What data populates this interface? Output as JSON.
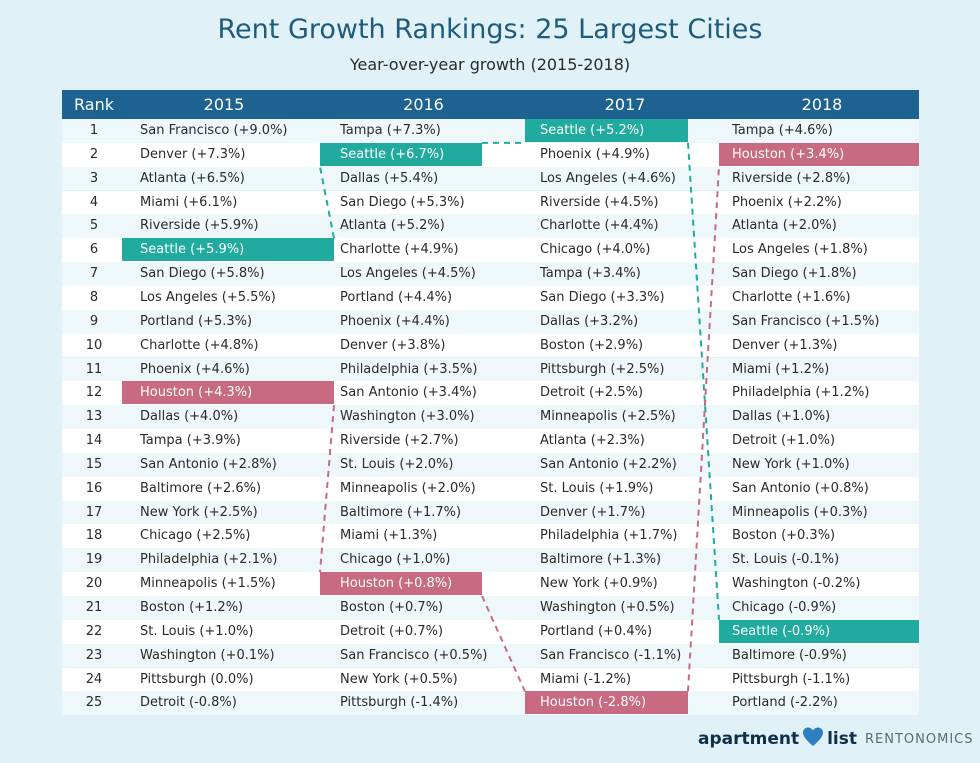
{
  "title": "Rent Growth Rankings: 25 Largest Cities",
  "subtitle": "Year-over-year growth (2015-2018)",
  "colors": {
    "header": "#1d6290",
    "seattle": "#21ab9e",
    "houston": "#c86b82"
  },
  "chart_data": {
    "type": "table",
    "columns": [
      "Rank",
      "2015",
      "2016",
      "2017",
      "2018"
    ],
    "ranks": [
      "1",
      "2",
      "3",
      "4",
      "5",
      "6",
      "7",
      "8",
      "9",
      "10",
      "11",
      "12",
      "13",
      "14",
      "15",
      "16",
      "17",
      "18",
      "19",
      "20",
      "21",
      "22",
      "23",
      "24",
      "25"
    ],
    "years": [
      {
        "year": "2015",
        "cities": [
          "San Francisco (+9.0%)",
          "Denver (+7.3%)",
          "Atlanta (+6.5%)",
          "Miami (+6.1%)",
          "Riverside (+5.9%)",
          "Seattle (+5.9%)",
          "San Diego (+5.8%)",
          "Los Angeles (+5.5%)",
          "Portland (+5.3%)",
          "Charlotte (+4.8%)",
          "Phoenix (+4.6%)",
          "Houston (+4.3%)",
          "Dallas (+4.0%)",
          "Tampa (+3.9%)",
          "San Antonio (+2.8%)",
          "Baltimore (+2.6%)",
          "New York (+2.5%)",
          "Chicago (+2.5%)",
          "Philadelphia (+2.1%)",
          "Minneapolis (+1.5%)",
          "Boston (+1.2%)",
          "St. Louis (+1.0%)",
          "Washington (+0.1%)",
          "Pittsburgh (0.0%)",
          "Detroit (-0.8%)"
        ]
      },
      {
        "year": "2016",
        "cities": [
          "Tampa (+7.3%)",
          "Seattle (+6.7%)",
          "Dallas (+5.4%)",
          "San Diego (+5.3%)",
          "Atlanta (+5.2%)",
          "Charlotte (+4.9%)",
          "Los Angeles (+4.5%)",
          "Portland (+4.4%)",
          "Phoenix (+4.4%)",
          "Denver (+3.8%)",
          "Philadelphia (+3.5%)",
          "San Antonio (+3.4%)",
          "Washington (+3.0%)",
          "Riverside (+2.7%)",
          "St. Louis (+2.0%)",
          "Minneapolis (+2.0%)",
          "Baltimore (+1.7%)",
          "Miami (+1.3%)",
          "Chicago (+1.0%)",
          "Houston (+0.8%)",
          "Boston (+0.7%)",
          "Detroit (+0.7%)",
          "San Francisco (+0.5%)",
          "New York (+0.5%)",
          "Pittsburgh (-1.4%)"
        ]
      },
      {
        "year": "2017",
        "cities": [
          "Seattle (+5.2%)",
          "Phoenix (+4.9%)",
          "Los Angeles (+4.6%)",
          "Riverside (+4.5%)",
          "Charlotte (+4.4%)",
          "Chicago (+4.0%)",
          "Tampa (+3.4%)",
          "San Diego (+3.3%)",
          "Dallas (+3.2%)",
          "Boston (+2.9%)",
          "Pittsburgh (+2.5%)",
          "Detroit (+2.5%)",
          "Minneapolis (+2.5%)",
          "Atlanta (+2.3%)",
          "San Antonio (+2.2%)",
          "St. Louis (+1.9%)",
          "Denver (+1.7%)",
          "Philadelphia (+1.7%)",
          "Baltimore (+1.3%)",
          "New York (+0.9%)",
          "Washington (+0.5%)",
          "Portland (+0.4%)",
          "San Francisco (-1.1%)",
          "Miami (-1.2%)",
          "Houston (-2.8%)"
        ]
      },
      {
        "year": "2018",
        "cities": [
          "Tampa (+4.6%)",
          "Houston (+3.4%)",
          "Riverside (+2.8%)",
          "Phoenix (+2.2%)",
          "Atlanta (+2.0%)",
          "Los Angeles (+1.8%)",
          "San Diego (+1.8%)",
          "Charlotte (+1.6%)",
          "San Francisco (+1.5%)",
          "Denver (+1.3%)",
          "Miami (+1.2%)",
          "Philadelphia (+1.2%)",
          "Dallas (+1.0%)",
          "Detroit (+1.0%)",
          "New York (+1.0%)",
          "San Antonio (+0.8%)",
          "Minneapolis (+0.3%)",
          "Boston (+0.3%)",
          "St. Louis (-0.1%)",
          "Washington (-0.2%)",
          "Chicago (-0.9%)",
          "Seattle (-0.9%)",
          "Baltimore (-0.9%)",
          "Pittsburgh (-1.1%)",
          "Portland (-2.2%)"
        ]
      }
    ],
    "highlights": [
      {
        "city": "Seattle",
        "color": "#21ab9e",
        "ranks": [
          6,
          2,
          1,
          22
        ]
      },
      {
        "city": "Houston",
        "color": "#c86b82",
        "ranks": [
          12,
          20,
          25,
          2
        ]
      }
    ]
  },
  "logo": {
    "brand_left": "apartment",
    "brand_right": "list",
    "tagline": "RENTONOMICS"
  }
}
